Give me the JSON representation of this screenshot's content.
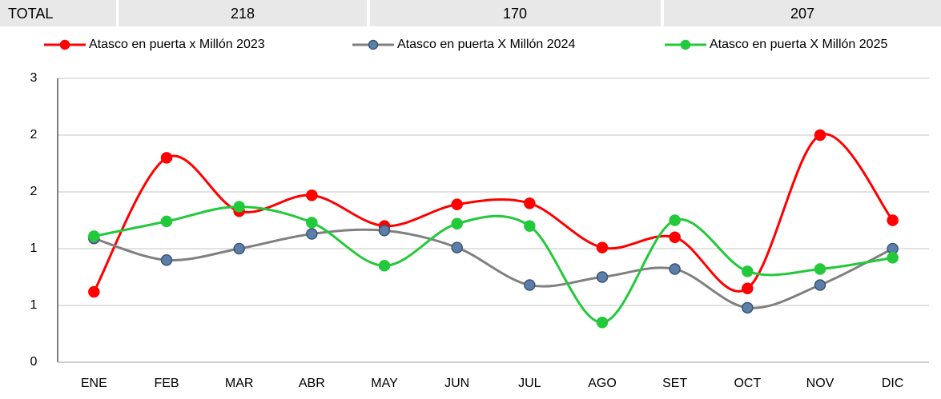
{
  "totals": {
    "label": "TOTAL",
    "values": [
      218,
      170,
      207
    ]
  },
  "chart_data": {
    "type": "line",
    "smooth": true,
    "grid": true,
    "legend": "top",
    "categories": [
      "ENE",
      "FEB",
      "MAR",
      "ABR",
      "MAY",
      "JUN",
      "JUL",
      "AGO",
      "SET",
      "OCT",
      "NOV",
      "DIC"
    ],
    "series": [
      {
        "name": "Atasco en puerta x Millón 2023",
        "color": "#ff0000",
        "marker_edge": "#ff0000",
        "values": [
          0.62,
          1.8,
          1.33,
          1.47,
          1.2,
          1.39,
          1.4,
          1.01,
          1.1,
          0.65,
          2.0,
          1.25
        ]
      },
      {
        "name": "Atasco en puerta X Millón 2024",
        "color": "#808080",
        "marker_fill": "#5b7fa6",
        "marker_edge": "#3a5577",
        "values": [
          1.09,
          0.9,
          1.0,
          1.13,
          1.16,
          1.01,
          0.68,
          0.75,
          0.82,
          0.48,
          0.68,
          1.0
        ]
      },
      {
        "name": "Atasco en puerta X Millón 2025",
        "color": "#22c93a",
        "marker_edge": "#22c93a",
        "values": [
          1.11,
          1.24,
          1.37,
          1.23,
          0.85,
          1.22,
          1.2,
          0.35,
          1.25,
          0.8,
          0.82,
          0.92
        ]
      }
    ],
    "ylim": [
      0,
      2.5
    ],
    "yticks": [
      0,
      {
        "value": 0.5,
        "label": "1"
      },
      {
        "value": 1,
        "label": "1"
      },
      {
        "value": 1.5,
        "label": "2"
      },
      {
        "value": 2,
        "label": "2"
      },
      {
        "value": 2.5,
        "label": "3"
      }
    ]
  }
}
